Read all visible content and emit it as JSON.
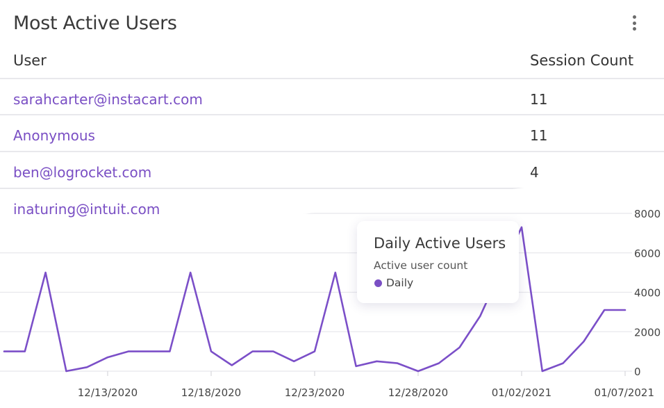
{
  "colors": {
    "accent": "#7a4fc4",
    "line": "#7b4fc8",
    "grid": "#e8e8ec",
    "text": "#3a3a3a"
  },
  "users_card": {
    "title": "Most Active Users",
    "menu_icon": "kebab-menu-icon",
    "columns": {
      "user": "User",
      "count": "Session Count"
    },
    "rows": [
      {
        "user": "sarahcarter@instacart.com",
        "count": "11"
      },
      {
        "user": "Anonymous",
        "count": "11"
      },
      {
        "user": "ben@logrocket.com",
        "count": "4"
      },
      {
        "user": "inaturing@intuit.com",
        "count": ""
      }
    ]
  },
  "tooltip": {
    "title": "Daily Active Users",
    "subtitle": "Active user count",
    "series_label": "Daily"
  },
  "chart_data": {
    "type": "line",
    "title": "Daily Active Users",
    "ylabel": "Active user count",
    "xlim": [
      "2020-12-08",
      "2021-01-07"
    ],
    "ylim": [
      0,
      8000
    ],
    "yticks": [
      0,
      2000,
      4000,
      6000,
      8000
    ],
    "ytick_labels": [
      "0",
      "2000",
      "4000",
      "6000",
      "8000"
    ],
    "xticks": [
      "2020-12-13",
      "2020-12-18",
      "2020-12-23",
      "2020-12-28",
      "2021-01-02",
      "2021-01-07"
    ],
    "xtick_labels": [
      "12/13/2020",
      "12/18/2020",
      "12/23/2020",
      "12/28/2020",
      "01/02/2021",
      "01/07/2021"
    ],
    "grid": true,
    "series": [
      {
        "name": "Daily",
        "x": [
          "2020-12-08",
          "2020-12-09",
          "2020-12-10",
          "2020-12-11",
          "2020-12-12",
          "2020-12-13",
          "2020-12-14",
          "2020-12-15",
          "2020-12-16",
          "2020-12-17",
          "2020-12-18",
          "2020-12-19",
          "2020-12-20",
          "2020-12-21",
          "2020-12-22",
          "2020-12-23",
          "2020-12-24",
          "2020-12-25",
          "2020-12-26",
          "2020-12-27",
          "2020-12-28",
          "2020-12-29",
          "2020-12-30",
          "2020-12-31",
          "2021-01-01",
          "2021-01-02",
          "2021-01-03",
          "2021-01-04",
          "2021-01-05",
          "2021-01-06",
          "2021-01-07"
        ],
        "y": [
          1000,
          1000,
          5000,
          0,
          200,
          700,
          1000,
          1000,
          1000,
          5000,
          1000,
          300,
          1000,
          1000,
          500,
          1000,
          5000,
          250,
          500,
          400,
          0,
          400,
          1200,
          2800,
          5100,
          7300,
          0,
          400,
          1500,
          3100,
          3100
        ]
      }
    ]
  }
}
